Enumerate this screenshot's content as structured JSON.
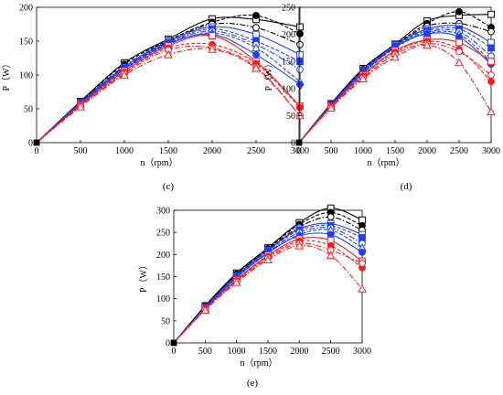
{
  "figure": {
    "marker_colors": {
      "black": "#000000",
      "blue": "#1f3fff",
      "red": "#ff1a1a"
    }
  },
  "chart_data": [
    {
      "panel": "(c)",
      "type": "scatter",
      "xlabel": "n（rpm）",
      "ylabel": "P（W）",
      "xlim": [
        0,
        3000
      ],
      "ylim": [
        0,
        200
      ],
      "xticks": [
        0,
        500,
        1000,
        1500,
        2000,
        2500,
        3000
      ],
      "yticks": [
        0,
        50,
        100,
        150,
        200
      ],
      "x": [
        0,
        500,
        1000,
        1500,
        2000,
        2500,
        3000
      ],
      "series": [
        {
          "color": "black",
          "marker": "square",
          "fill": "open",
          "line": "solid",
          "values": [
            0,
            61,
            118,
            153,
            183,
            182,
            171
          ]
        },
        {
          "color": "black",
          "marker": "circle",
          "fill": "solid",
          "line": "dash",
          "values": [
            0,
            60,
            116,
            151,
            178,
            188,
            161
          ]
        },
        {
          "color": "black",
          "marker": "circle",
          "fill": "open",
          "line": "dashdot",
          "values": [
            0,
            59,
            113,
            149,
            175,
            170,
            145
          ]
        },
        {
          "color": "blue",
          "marker": "square",
          "fill": "open",
          "line": "solid",
          "values": [
            0,
            59,
            112,
            150,
            171,
            160,
            130
          ]
        },
        {
          "color": "blue",
          "marker": "square",
          "fill": "solid",
          "line": "dash",
          "values": [
            0,
            58,
            111,
            148,
            168,
            150,
            120
          ]
        },
        {
          "color": "blue",
          "marker": "circle",
          "fill": "open",
          "line": "dashdot",
          "values": [
            0,
            57,
            110,
            147,
            165,
            145,
            108
          ]
        },
        {
          "color": "blue",
          "marker": "triangle",
          "fill": "open",
          "line": "dash",
          "values": [
            0,
            57,
            108,
            145,
            162,
            140,
            90
          ]
        },
        {
          "color": "blue",
          "marker": "circle",
          "fill": "solid",
          "line": "solid",
          "values": [
            0,
            58,
            109,
            146,
            160,
            130,
            86
          ]
        },
        {
          "color": "red",
          "marker": "square",
          "fill": "open",
          "line": "solid",
          "values": [
            0,
            56,
            106,
            143,
            158,
            120,
            54
          ]
        },
        {
          "color": "red",
          "marker": "circle",
          "fill": "solid",
          "line": "dash",
          "values": [
            0,
            55,
            104,
            140,
            145,
            117,
            52
          ]
        },
        {
          "color": "red",
          "marker": "circle",
          "fill": "open",
          "line": "dashdot",
          "values": [
            0,
            54,
            102,
            137,
            140,
            112,
            40
          ]
        },
        {
          "color": "red",
          "marker": "triangle",
          "fill": "open",
          "line": "dashdot",
          "values": [
            0,
            53,
            100,
            130,
            138,
            110,
            40
          ]
        }
      ]
    },
    {
      "panel": "(d)",
      "type": "scatter",
      "xlabel": "n（rpm）",
      "ylabel": "P（W）",
      "xlim": [
        0,
        3000
      ],
      "ylim": [
        0,
        250
      ],
      "xticks": [
        0,
        500,
        1000,
        1500,
        2000,
        2500,
        3000
      ],
      "yticks": [
        0,
        50,
        100,
        150,
        200,
        250
      ],
      "x": [
        0,
        500,
        1000,
        1500,
        2000,
        2500,
        3000
      ],
      "series": [
        {
          "color": "black",
          "marker": "square",
          "fill": "open",
          "line": "solid",
          "values": [
            0,
            72,
            137,
            182,
            225,
            235,
            237
          ]
        },
        {
          "color": "black",
          "marker": "circle",
          "fill": "solid",
          "line": "dash",
          "values": [
            0,
            71,
            135,
            180,
            220,
            242,
            213
          ]
        },
        {
          "color": "black",
          "marker": "circle",
          "fill": "open",
          "line": "dashdot",
          "values": [
            0,
            70,
            133,
            178,
            215,
            220,
            205
          ]
        },
        {
          "color": "blue",
          "marker": "square",
          "fill": "open",
          "line": "solid",
          "values": [
            0,
            70,
            133,
            180,
            210,
            215,
            185
          ]
        },
        {
          "color": "blue",
          "marker": "square",
          "fill": "solid",
          "line": "dash",
          "values": [
            0,
            69,
            132,
            178,
            207,
            210,
            175
          ]
        },
        {
          "color": "blue",
          "marker": "circle",
          "fill": "open",
          "line": "dashdot",
          "values": [
            0,
            68,
            130,
            176,
            204,
            205,
            160
          ]
        },
        {
          "color": "blue",
          "marker": "triangle",
          "fill": "open",
          "line": "dash",
          "values": [
            0,
            68,
            128,
            175,
            202,
            200,
            150
          ]
        },
        {
          "color": "blue",
          "marker": "circle",
          "fill": "solid",
          "line": "solid",
          "values": [
            0,
            69,
            129,
            177,
            201,
            195,
            145
          ]
        },
        {
          "color": "red",
          "marker": "square",
          "fill": "open",
          "line": "solid",
          "values": [
            0,
            67,
            125,
            170,
            190,
            185,
            150
          ]
        },
        {
          "color": "red",
          "marker": "circle",
          "fill": "solid",
          "line": "dash",
          "values": [
            0,
            66,
            123,
            167,
            187,
            172,
            113
          ]
        },
        {
          "color": "red",
          "marker": "circle",
          "fill": "open",
          "line": "dashdot",
          "values": [
            0,
            65,
            120,
            163,
            183,
            168,
            125
          ]
        },
        {
          "color": "red",
          "marker": "triangle",
          "fill": "open",
          "line": "dashdot",
          "values": [
            0,
            64,
            118,
            158,
            180,
            148,
            57
          ]
        }
      ]
    },
    {
      "panel": "(e)",
      "type": "scatter",
      "xlabel": "n（rpm）",
      "ylabel": "P（W）",
      "xlim": [
        0,
        3000
      ],
      "ylim": [
        0,
        300
      ],
      "xticks": [
        0,
        500,
        1000,
        1500,
        2000,
        2500,
        3000
      ],
      "yticks": [
        0,
        50,
        100,
        150,
        200,
        250,
        300
      ],
      "x": [
        0,
        500,
        1000,
        1500,
        2000,
        2500,
        3000
      ],
      "series": [
        {
          "color": "black",
          "marker": "square",
          "fill": "open",
          "line": "solid",
          "values": [
            0,
            84,
            158,
            215,
            272,
            305,
            278
          ]
        },
        {
          "color": "black",
          "marker": "circle",
          "fill": "solid",
          "line": "dash",
          "values": [
            0,
            83,
            156,
            213,
            268,
            295,
            265
          ]
        },
        {
          "color": "black",
          "marker": "circle",
          "fill": "open",
          "line": "dashdot",
          "values": [
            0,
            82,
            154,
            211,
            262,
            285,
            255
          ]
        },
        {
          "color": "blue",
          "marker": "square",
          "fill": "open",
          "line": "solid",
          "values": [
            0,
            81,
            152,
            210,
            258,
            270,
            245
          ]
        },
        {
          "color": "blue",
          "marker": "square",
          "fill": "solid",
          "line": "dash",
          "values": [
            0,
            80,
            151,
            208,
            255,
            265,
            238
          ]
        },
        {
          "color": "blue",
          "marker": "circle",
          "fill": "open",
          "line": "dashdot",
          "values": [
            0,
            79,
            149,
            205,
            250,
            260,
            225
          ]
        },
        {
          "color": "blue",
          "marker": "triangle",
          "fill": "open",
          "line": "dash",
          "values": [
            0,
            78,
            147,
            203,
            245,
            255,
            215
          ]
        },
        {
          "color": "blue",
          "marker": "circle",
          "fill": "solid",
          "line": "solid",
          "values": [
            0,
            79,
            148,
            204,
            242,
            245,
            205
          ]
        },
        {
          "color": "red",
          "marker": "square",
          "fill": "open",
          "line": "solid",
          "values": [
            0,
            77,
            143,
            198,
            235,
            232,
            185
          ]
        },
        {
          "color": "red",
          "marker": "circle",
          "fill": "solid",
          "line": "dash",
          "values": [
            0,
            76,
            141,
            195,
            230,
            220,
            170
          ]
        },
        {
          "color": "red",
          "marker": "circle",
          "fill": "open",
          "line": "dashdot",
          "values": [
            0,
            75,
            139,
            192,
            225,
            210,
            180
          ]
        },
        {
          "color": "red",
          "marker": "triangle",
          "fill": "open",
          "line": "dashdot",
          "values": [
            0,
            74,
            137,
            188,
            220,
            198,
            122
          ]
        }
      ]
    }
  ]
}
